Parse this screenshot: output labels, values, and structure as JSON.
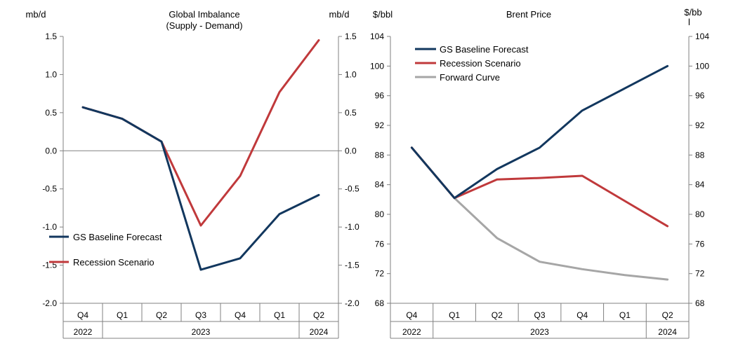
{
  "chart_data": [
    {
      "type": "line",
      "title": "Global Imbalance",
      "subtitle": "(Supply - Demand)",
      "ylabel_left": "mb/d",
      "ylabel_right": "mb/d",
      "ylim": [
        -2.0,
        1.5
      ],
      "yticks": [
        "1.5",
        "1.0",
        "0.5",
        "0.0",
        "-0.5",
        "-1.0",
        "-1.5",
        "-2.0"
      ],
      "yticks_right": [
        "1.5",
        "1.0",
        "0.5",
        "0.0",
        "-0.5",
        "-1.0",
        "-1.5",
        "-2.0"
      ],
      "categories": [
        "Q4",
        "Q1",
        "Q2",
        "Q3",
        "Q4",
        "Q1",
        "Q2"
      ],
      "years": [
        {
          "label": "2022"
        },
        {
          "label": "2023"
        },
        {
          "label": "2024"
        }
      ],
      "legend_position": "bottom-left",
      "zero_line": true,
      "series": [
        {
          "name": "GS Baseline Forecast",
          "color": "#12375e",
          "values": [
            0.57,
            0.42,
            0.12,
            -1.56,
            -1.41,
            -0.83,
            -0.58
          ]
        },
        {
          "name": "Recession Scenario",
          "color": "#c0393b",
          "values": [
            0.57,
            0.42,
            0.12,
            -0.98,
            -0.33,
            0.77,
            1.45
          ]
        }
      ]
    },
    {
      "type": "line",
      "title": "Brent Price",
      "ylabel_left": "$/bbl",
      "ylabel_right_line1": "$/bb",
      "ylabel_right_line2": "l",
      "ylim": [
        68,
        104
      ],
      "yticks": [
        "104",
        "100",
        "96",
        "92",
        "88",
        "84",
        "80",
        "76",
        "72",
        "68"
      ],
      "yticks_right": [
        "104",
        "100",
        "96",
        "92",
        "88",
        "84",
        "80",
        "76",
        "72",
        "68"
      ],
      "categories": [
        "Q4",
        "Q1",
        "Q2",
        "Q3",
        "Q4",
        "Q1",
        "Q2"
      ],
      "years": [
        {
          "label": "2022"
        },
        {
          "label": "2023"
        },
        {
          "label": "2024"
        }
      ],
      "legend_position": "top-left",
      "series": [
        {
          "name": "GS Baseline Forecast",
          "color": "#12375e",
          "values": [
            89,
            82.2,
            86.1,
            89,
            94,
            97,
            100
          ]
        },
        {
          "name": "Recession Scenario",
          "color": "#c0393b",
          "values": [
            89,
            82.2,
            84.7,
            84.9,
            85.2,
            81.8,
            78.4
          ]
        },
        {
          "name": "Forward Curve",
          "color": "#a6a6a6",
          "values": [
            89,
            82.2,
            76.8,
            73.6,
            72.6,
            71.8,
            71.2
          ]
        }
      ]
    }
  ]
}
